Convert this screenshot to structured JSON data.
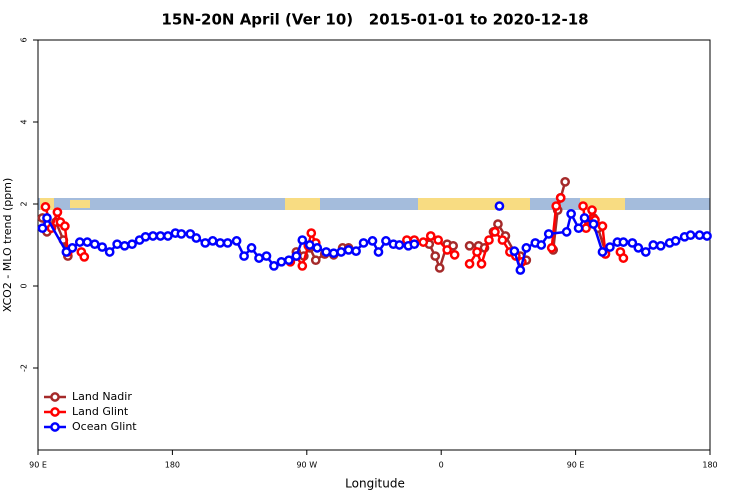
{
  "chart_data": {
    "type": "line",
    "title": "15N-20N April (Ver 10)   2015-01-01 to 2020-12-18",
    "xlabel": "Longitude",
    "ylabel": "XCO2 - MLO trend (ppm)",
    "xlim": [
      90,
      540
    ],
    "ylim": [
      -4,
      6
    ],
    "xticks": [
      {
        "value": 90,
        "label": "90 E"
      },
      180,
      {
        "value": 270,
        "label": "90 W"
      },
      {
        "value": 360,
        "label": "0"
      },
      {
        "value": 450,
        "label": "90 E"
      },
      {
        "value": 540,
        "label": "180"
      }
    ],
    "yticks": [
      -2,
      0,
      2,
      4,
      6
    ],
    "legend": "bottom-left",
    "series": [
      {
        "name": "Land Nadir",
        "color": "#a52a2a",
        "x": [
          93,
          96,
          102,
          107,
          110,
          null,
          263,
          268,
          272,
          276,
          282,
          288,
          294,
          298,
          null,
          352,
          356,
          359,
          364,
          368,
          null,
          379,
          385,
          389,
          395,
          398,
          403,
          409,
          413,
          417,
          null,
          435,
          438,
          440,
          443,
          null,
          462,
          465,
          470
        ],
        "values": [
          1.66,
          1.32,
          1.56,
          1.12,
          0.73,
          null,
          0.83,
          0.73,
          0.93,
          0.63,
          0.78,
          0.76,
          0.93,
          0.93,
          null,
          1.02,
          0.73,
          0.44,
          1.02,
          0.98,
          null,
          0.98,
          0.98,
          0.93,
          1.32,
          1.51,
          1.22,
          0.83,
          0.73,
          0.63,
          null,
          0.88,
          1.85,
          2.15,
          2.54,
          null,
          1.66,
          1.41,
          0.83
        ]
      },
      {
        "name": "Land Glint",
        "color": "#ff0000",
        "x": [
          95,
          99,
          103,
          105,
          108,
          110,
          null,
          119,
          121,
          null,
          259,
          263,
          267,
          271,
          273,
          276,
          null,
          337,
          342,
          348,
          353,
          358,
          364,
          369,
          null,
          379,
          384,
          387,
          392,
          396,
          401,
          406,
          410,
          414,
          null,
          434,
          437,
          440,
          null,
          455,
          457,
          461,
          463,
          468,
          470,
          null,
          480,
          482
        ],
        "values": [
          1.93,
          1.41,
          1.8,
          1.56,
          1.46,
          0.83,
          null,
          0.83,
          0.71,
          null,
          0.59,
          0.73,
          0.49,
          0.98,
          1.29,
          1.05,
          null,
          1.12,
          1.12,
          1.07,
          1.22,
          1.12,
          0.88,
          0.76,
          null,
          0.54,
          0.83,
          0.54,
          1.12,
          1.32,
          1.12,
          0.83,
          0.73,
          0.59,
          null,
          0.93,
          1.95,
          2.15,
          null,
          1.95,
          1.41,
          1.85,
          1.61,
          1.46,
          0.78,
          null,
          0.83,
          0.68
        ]
      },
      {
        "name": "Ocean Glint",
        "color": "#0000ff",
        "x": [
          93,
          96,
          109,
          113,
          118,
          123,
          128,
          133,
          138,
          143,
          148,
          153,
          158,
          162,
          167,
          172,
          177,
          182,
          186,
          192,
          196,
          202,
          207,
          212,
          217,
          223,
          228,
          233,
          238,
          243,
          248,
          253,
          258,
          263,
          267,
          272,
          277,
          283,
          288,
          293,
          298,
          303,
          308,
          314,
          318,
          323,
          328,
          332,
          338,
          342,
          null,
          399,
          null,
          409,
          413,
          417,
          423,
          427,
          432,
          444,
          447,
          452,
          456,
          462,
          468,
          473,
          478,
          482,
          488,
          492,
          497,
          502,
          507,
          513,
          517,
          523,
          527,
          533,
          538
        ],
        "values": [
          1.41,
          1.66,
          0.83,
          0.93,
          1.07,
          1.07,
          1.02,
          0.95,
          0.83,
          1.02,
          0.98,
          1.02,
          1.12,
          1.2,
          1.22,
          1.22,
          1.22,
          1.29,
          1.27,
          1.27,
          1.17,
          1.05,
          1.1,
          1.05,
          1.05,
          1.1,
          0.73,
          0.93,
          0.68,
          0.73,
          0.49,
          0.59,
          0.63,
          0.73,
          1.12,
          1.0,
          0.93,
          0.83,
          0.8,
          0.83,
          0.88,
          0.85,
          1.05,
          1.1,
          0.83,
          1.1,
          1.02,
          1.0,
          0.98,
          1.02,
          null,
          1.95,
          null,
          0.85,
          0.39,
          0.93,
          1.05,
          1.0,
          1.27,
          1.32,
          1.76,
          1.41,
          1.66,
          1.51,
          0.83,
          0.95,
          1.07,
          1.07,
          1.05,
          0.93,
          0.83,
          1.0,
          0.98,
          1.05,
          1.1,
          1.2,
          1.24,
          1.24,
          1.22
        ]
      }
    ]
  }
}
